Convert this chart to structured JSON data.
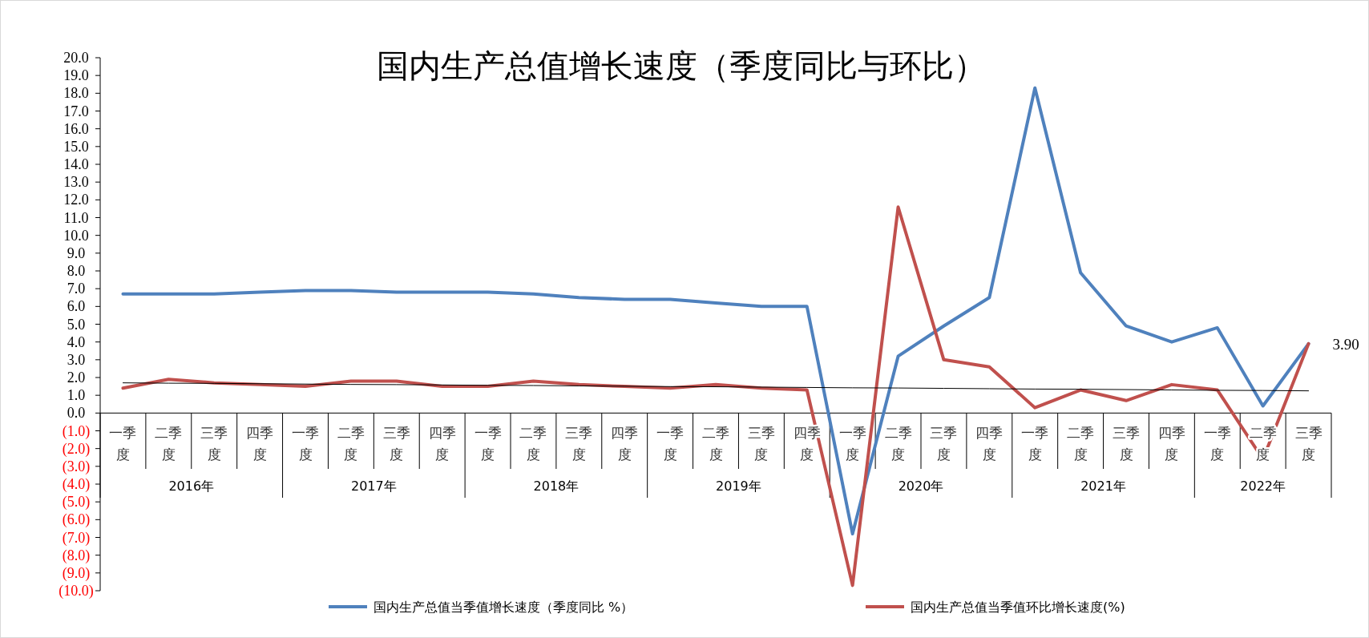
{
  "chart_data": {
    "type": "line",
    "title": "国内生产总值增长速度（季度同比与环比）",
    "categories": [
      "一季度",
      "二季度",
      "三季度",
      "四季度",
      "一季度",
      "二季度",
      "三季度",
      "四季度",
      "一季度",
      "二季度",
      "三季度",
      "四季度",
      "一季度",
      "二季度",
      "三季度",
      "四季度",
      "一季度",
      "二季度",
      "三季度",
      "四季度",
      "一季度",
      "二季度",
      "三季度",
      "四季度",
      "一季度",
      "二季度",
      "三季度"
    ],
    "annotations": [
      "2016年",
      "2017年",
      "2018年",
      "2019年",
      "2020年",
      "2021年",
      "2022年"
    ],
    "series": [
      {
        "name": "国内生产总值当季值增长速度（季度同比 %）",
        "color": "#4f81bd",
        "values": [
          6.7,
          6.7,
          6.7,
          6.8,
          6.9,
          6.9,
          6.8,
          6.8,
          6.8,
          6.7,
          6.5,
          6.4,
          6.4,
          6.2,
          6.0,
          6.0,
          -6.8,
          3.2,
          4.9,
          6.5,
          18.3,
          7.9,
          4.9,
          4.0,
          4.8,
          0.4,
          3.9
        ]
      },
      {
        "name": "国内生产总值当季值环比增长速度(%)",
        "color": "#c0504d",
        "values": [
          1.4,
          1.9,
          1.7,
          1.6,
          1.5,
          1.8,
          1.8,
          1.5,
          1.5,
          1.8,
          1.6,
          1.5,
          1.4,
          1.6,
          1.4,
          1.3,
          -9.7,
          11.6,
          3.0,
          2.6,
          0.3,
          1.3,
          0.7,
          1.6,
          1.3,
          -2.6,
          3.9
        ],
        "value_labels": [
          null,
          null,
          null,
          null,
          null,
          null,
          null,
          null,
          null,
          null,
          null,
          null,
          null,
          null,
          null,
          null,
          null,
          null,
          null,
          null,
          null,
          null,
          null,
          null,
          null,
          null,
          "3.90"
        ]
      },
      {
        "type": "line",
        "color": "#000000",
        "values": [
          1.7,
          1.68,
          1.67,
          1.65,
          1.63,
          1.61,
          1.6,
          1.58,
          1.56,
          1.55,
          1.53,
          1.51,
          1.49,
          1.48,
          1.46,
          1.44,
          1.42,
          1.41,
          1.39,
          1.37,
          1.35,
          1.34,
          1.32,
          1.3,
          1.28,
          1.27,
          1.25
        ]
      }
    ],
    "ylim": [
      -10,
      20
    ],
    "yticks": [
      {
        "value": -10,
        "label": "(10.0)"
      },
      {
        "value": -9,
        "label": "(9.0)"
      },
      {
        "value": -8,
        "label": "(8.0)"
      },
      {
        "value": -7,
        "label": "(7.0)"
      },
      {
        "value": -6,
        "label": "(6.0)"
      },
      {
        "value": -5,
        "label": "(5.0)"
      },
      {
        "value": -4,
        "label": "(4.0)"
      },
      {
        "value": -3,
        "label": "(3.0)"
      },
      {
        "value": -2,
        "label": "(2.0)"
      },
      {
        "value": -1,
        "label": "(1.0)"
      },
      {
        "value": 0,
        "label": "0.0"
      },
      {
        "value": 1,
        "label": "1.0"
      },
      {
        "value": 2,
        "label": "2.0"
      },
      {
        "value": 3,
        "label": "3.0"
      },
      {
        "value": 4,
        "label": "4.0"
      },
      {
        "value": 5,
        "label": "5.0"
      },
      {
        "value": 6,
        "label": "6.0"
      },
      {
        "value": 7,
        "label": "7.0"
      },
      {
        "value": 8,
        "label": "8.0"
      },
      {
        "value": 9,
        "label": "9.0"
      },
      {
        "value": 10,
        "label": "10.0"
      },
      {
        "value": 11,
        "label": "11.0"
      },
      {
        "value": 12,
        "label": "12.0"
      },
      {
        "value": 13,
        "label": "13.0"
      },
      {
        "value": 14,
        "label": "14.0"
      },
      {
        "value": 15,
        "label": "15.0"
      },
      {
        "value": 16,
        "label": "16.0"
      },
      {
        "value": 17,
        "label": "17.0"
      },
      {
        "value": 18,
        "label": "18.0"
      },
      {
        "value": 19,
        "label": "19.0"
      },
      {
        "value": 20,
        "label": "20.0"
      }
    ],
    "grid": false,
    "legend": "bottom",
    "marker": "none",
    "line_style": "solid"
  }
}
